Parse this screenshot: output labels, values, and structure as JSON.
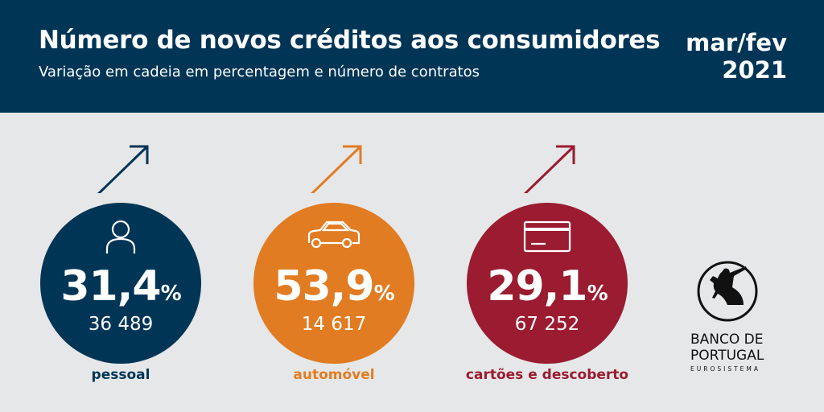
{
  "header": {
    "title": "Número de novos créditos aos consumidores",
    "subtitle": "Variação em cadeia em percentagem e número de contratos",
    "date_line1": "mar/fev",
    "date_line2": "2021"
  },
  "items": [
    {
      "category": "pessoal",
      "change": "31,4",
      "unit": "%",
      "contracts": "36 489",
      "icon": "person-icon",
      "trend": "up",
      "color": "#003556"
    },
    {
      "category": "automóvel",
      "change": "53,9",
      "unit": "%",
      "contracts": "14 617",
      "icon": "car-icon",
      "trend": "up",
      "color": "#e17c22"
    },
    {
      "category": "cartões e descoberto",
      "change": "29,1",
      "unit": "%",
      "contracts": "67 252",
      "icon": "credit-card-icon",
      "trend": "up",
      "color": "#9b1b30"
    }
  ],
  "logo": {
    "line1": "BANCO DE",
    "line2": "PORTUGAL",
    "line3": "EUROSISTEMA"
  }
}
